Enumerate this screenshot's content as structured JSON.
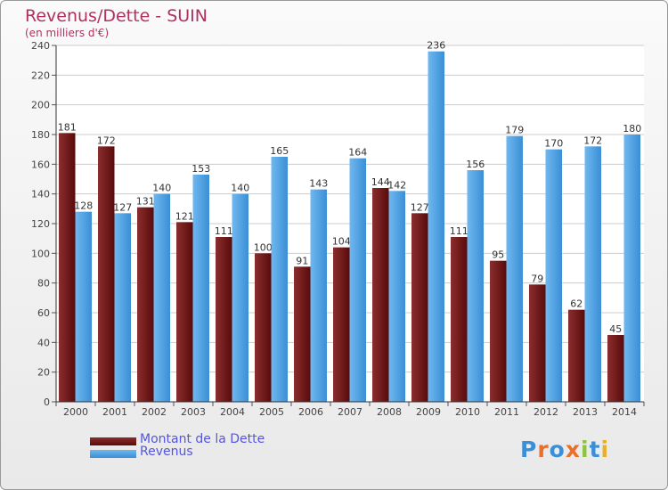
{
  "title": "Revenus/Dette - SUIN",
  "subtitle": "(en milliers d'€)",
  "logo": {
    "text": "Proxiti",
    "letter_colors": [
      "#3b8fd6",
      "#e8702a",
      "#3b8fd6",
      "#e8702a",
      "#8bc53f",
      "#3b8fd6",
      "#e8b02a"
    ]
  },
  "colors": {
    "debt_top": "#8b2e2e",
    "debt_bottom": "#5a0a0a",
    "revenue_top": "#6fb8f0",
    "revenue_bottom": "#3a8fd6",
    "title": "#b03060",
    "legend_text": "#5555dd"
  },
  "chart_data": {
    "type": "bar",
    "categories": [
      "2000",
      "2001",
      "2002",
      "2003",
      "2004",
      "2005",
      "2006",
      "2007",
      "2008",
      "2009",
      "2010",
      "2011",
      "2012",
      "2013",
      "2014"
    ],
    "series": [
      {
        "name": "Montant de la Dette",
        "values": [
          181,
          172,
          131,
          121,
          111,
          100,
          91,
          104,
          144,
          127,
          111,
          95,
          79,
          62,
          45
        ]
      },
      {
        "name": "Revenus",
        "values": [
          128,
          127,
          140,
          153,
          140,
          165,
          143,
          164,
          142,
          236,
          156,
          179,
          170,
          172,
          180
        ]
      }
    ],
    "ylim": [
      0,
      240
    ],
    "yticks": [
      0,
      20,
      40,
      60,
      80,
      100,
      120,
      140,
      160,
      180,
      200,
      220,
      240
    ],
    "grid": true,
    "legend_position": "bottom-left"
  }
}
